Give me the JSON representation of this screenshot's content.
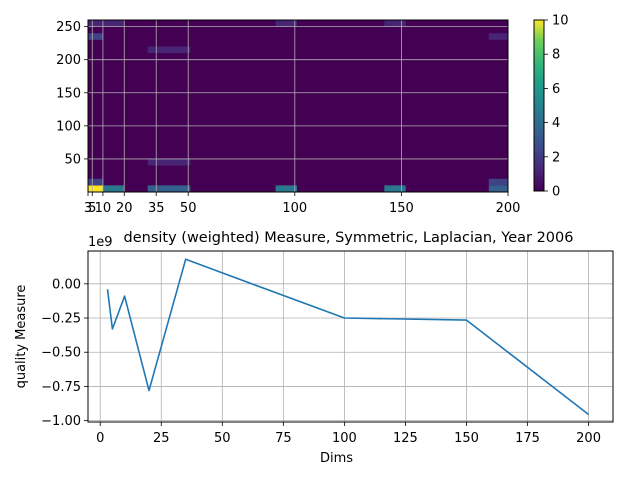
{
  "chart_data": [
    {
      "type": "heatmap",
      "title": "",
      "xlabel": "",
      "ylabel": "",
      "xlim": [
        3,
        200
      ],
      "ylim": [
        0,
        260
      ],
      "x_ticks": [
        3,
        5,
        10,
        20,
        35,
        50,
        100,
        150,
        200
      ],
      "x_tick_labels": [
        "3",
        "5",
        "10",
        "20",
        "35",
        "50",
        "100",
        "150",
        "200"
      ],
      "y_ticks": [
        50,
        100,
        150,
        200,
        250
      ],
      "y_tick_labels": [
        "50",
        "100",
        "150",
        "200",
        "250"
      ],
      "grid": true,
      "colormap": "viridis",
      "colorbar": {
        "min": 0,
        "max": 10,
        "ticks": [
          0,
          2,
          4,
          6,
          8,
          10
        ],
        "tick_labels": [
          "0",
          "2",
          "4",
          "6",
          "8",
          "10"
        ]
      },
      "background_value": 0,
      "cells": [
        {
          "x0": 3,
          "x1": 10,
          "y0": 0,
          "y1": 10,
          "value": 10
        },
        {
          "x0": 10,
          "x1": 20,
          "y0": 0,
          "y1": 10,
          "value": 4
        },
        {
          "x0": 3,
          "x1": 10,
          "y0": 10,
          "y1": 20,
          "value": 2
        },
        {
          "x0": 3,
          "x1": 10,
          "y0": 230,
          "y1": 240,
          "value": 2
        },
        {
          "x0": 3,
          "x1": 20,
          "y0": 250,
          "y1": 260,
          "value": 1
        },
        {
          "x0": 31,
          "x1": 51,
          "y0": 0,
          "y1": 10,
          "value": 3
        },
        {
          "x0": 31,
          "x1": 51,
          "y0": 40,
          "y1": 50,
          "value": 1
        },
        {
          "x0": 31,
          "x1": 51,
          "y0": 210,
          "y1": 220,
          "value": 1
        },
        {
          "x0": 91,
          "x1": 101,
          "y0": 0,
          "y1": 10,
          "value": 4
        },
        {
          "x0": 91,
          "x1": 101,
          "y0": 250,
          "y1": 260,
          "value": 1
        },
        {
          "x0": 142,
          "x1": 152,
          "y0": 0,
          "y1": 10,
          "value": 4
        },
        {
          "x0": 142,
          "x1": 152,
          "y0": 250,
          "y1": 260,
          "value": 1
        },
        {
          "x0": 191,
          "x1": 200,
          "y0": 0,
          "y1": 10,
          "value": 3
        },
        {
          "x0": 191,
          "x1": 200,
          "y0": 10,
          "y1": 20,
          "value": 2
        },
        {
          "x0": 191,
          "x1": 200,
          "y0": 230,
          "y1": 240,
          "value": 1
        }
      ]
    },
    {
      "type": "line",
      "title": "density (weighted) Measure, Symmetric, Laplacian, Year 2006",
      "xlabel": "Dims",
      "ylabel": "quality Measure",
      "offset_text": "1e9",
      "xlim": [
        -5,
        210
      ],
      "ylim": [
        -1.01,
        0.24
      ],
      "x_ticks": [
        0,
        25,
        50,
        75,
        100,
        125,
        150,
        175,
        200
      ],
      "x_tick_labels": [
        "0",
        "25",
        "50",
        "75",
        "100",
        "125",
        "150",
        "175",
        "200"
      ],
      "y_ticks": [
        0.0,
        -0.25,
        -0.5,
        -0.75,
        -1.0
      ],
      "y_tick_labels": [
        "0.00",
        "−0.25",
        "−0.50",
        "−0.75",
        "−1.00"
      ],
      "grid": true,
      "series": [
        {
          "color": "#1f77b4",
          "x": [
            3,
            5,
            10,
            20,
            35,
            50,
            100,
            150,
            200
          ],
          "y": [
            -0.04,
            -0.33,
            -0.09,
            -0.78,
            0.18,
            0.08,
            -0.25,
            -0.265,
            -0.955
          ]
        }
      ]
    }
  ]
}
